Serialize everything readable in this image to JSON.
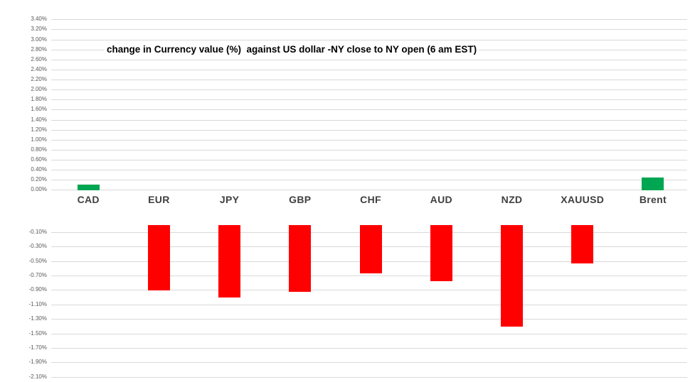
{
  "chart_data": {
    "type": "bar",
    "title": "change in Currency value (%)  against US dollar -NY close to NY open (6 am EST)",
    "categories": [
      "CAD",
      "EUR",
      "JPY",
      "GBP",
      "CHF",
      "AUD",
      "NZD",
      "XAUUSD",
      "Brent"
    ],
    "values": [
      0.1,
      -0.91,
      -1.0,
      -0.93,
      -0.67,
      -0.78,
      -1.41,
      -0.53,
      0.25
    ],
    "unit": "%",
    "bar_colors": {
      "positive": "#00a651",
      "negative": "#ff0000"
    },
    "y_axis": {
      "top_section_range": [
        0.0,
        3.4
      ],
      "bottom_section_range": [
        -2.1,
        -0.1
      ],
      "tick_step": 0.2,
      "gridlines": true,
      "top_ticks": [
        "3.40%",
        "3.20%",
        "3.00%",
        "2.80%",
        "2.60%",
        "2.40%",
        "2.20%",
        "2.00%",
        "1.80%",
        "1.60%",
        "1.40%",
        "1.20%",
        "1.00%",
        "0.80%",
        "0.60%",
        "0.40%",
        "0.20%",
        "0.00%"
      ],
      "bottom_ticks": [
        "-0.10%",
        "-0.30%",
        "-0.50%",
        "-0.70%",
        "-0.90%",
        "-1.10%",
        "-1.30%",
        "-1.50%",
        "-1.70%",
        "-1.90%",
        "-2.10%"
      ]
    },
    "xlabel": "",
    "ylabel": "",
    "legend": "none",
    "layout_note": "split axis: positive section on top (compressed scale), category labels in middle band, negative section below (expanded scale)"
  },
  "colors": {
    "background": "#ffffff",
    "gridline": "#d9d9d9",
    "tick_label": "#595959",
    "category_label": "#3f3f3f",
    "title_text": "#000000"
  }
}
